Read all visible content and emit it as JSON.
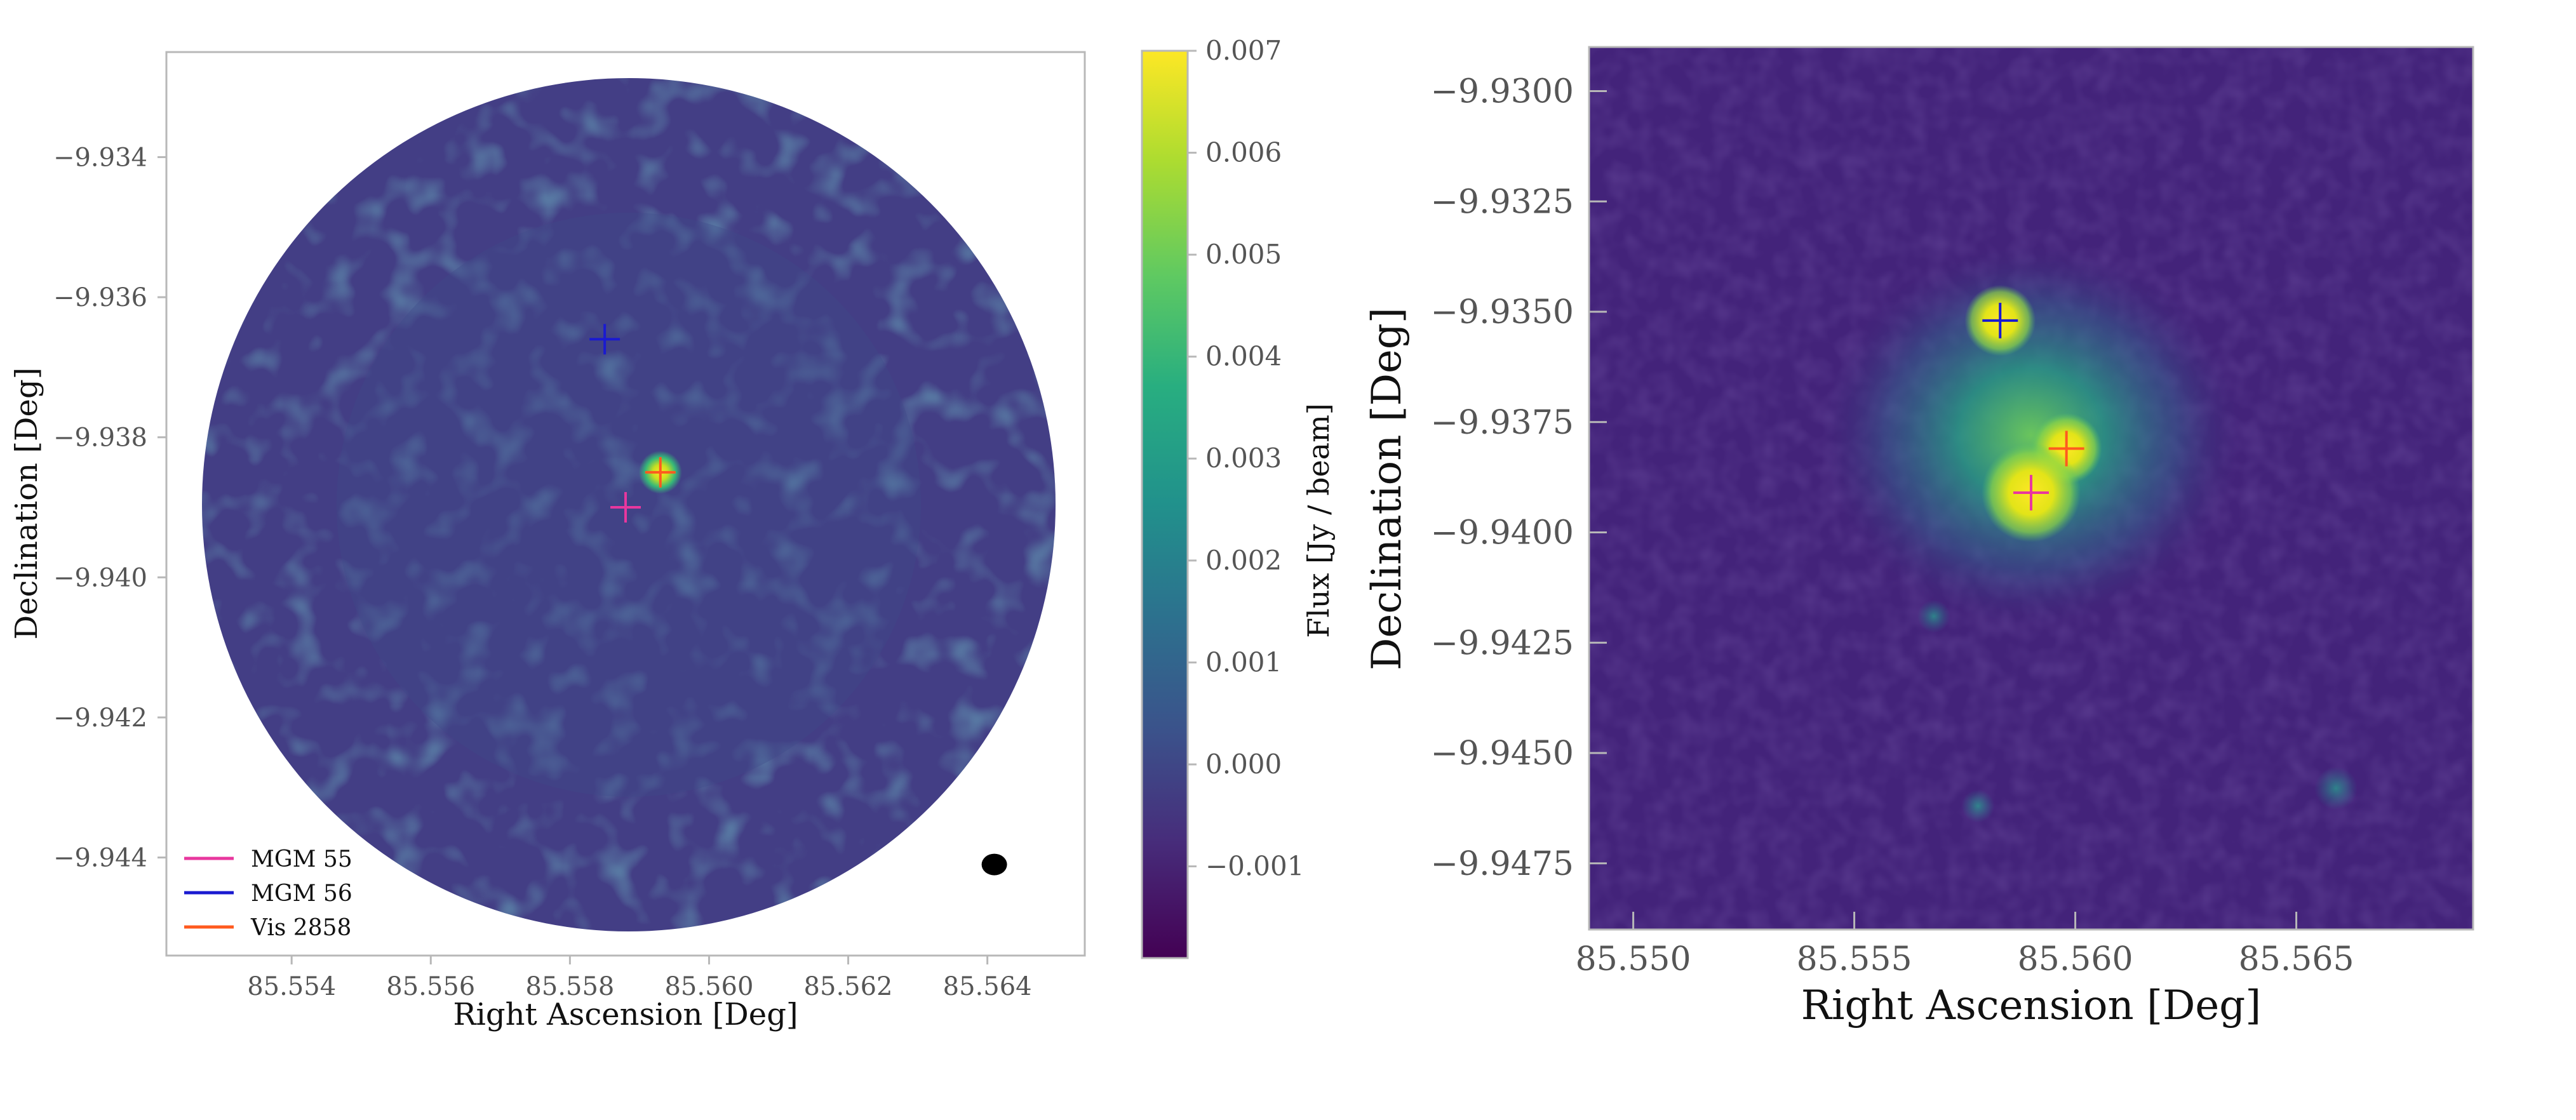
{
  "chart_data": [
    {
      "type": "heatmap",
      "name": "interferometric-map",
      "xlabel": "Right Ascension [Deg]",
      "ylabel": "Declination [Deg]",
      "xlim": [
        85.5522,
        85.5654
      ],
      "ylim": [
        -9.9454,
        -9.9325
      ],
      "xticks": [
        "85.554",
        "85.556",
        "85.558",
        "85.560",
        "85.562",
        "85.564"
      ],
      "xtick_values": [
        85.554,
        85.556,
        85.558,
        85.56,
        85.562,
        85.564
      ],
      "yticks": [
        "−9.934",
        "−9.936",
        "−9.938",
        "−9.940",
        "−9.942",
        "−9.944"
      ],
      "ytick_values": [
        -9.934,
        -9.936,
        -9.938,
        -9.94,
        -9.942,
        -9.944
      ],
      "field_of_view": "circular",
      "markers": [
        {
          "name": "MGM 56",
          "ra": 85.5585,
          "dec": -9.9366,
          "color": "#1a1ad0"
        },
        {
          "name": "Vis 2858",
          "ra": 85.5593,
          "dec": -9.9385,
          "color": "#ff5a1f"
        },
        {
          "name": "MGM 55",
          "ra": 85.5588,
          "dec": -9.939,
          "color": "#e8379e"
        }
      ],
      "source_peak": {
        "ra": 85.5593,
        "dec": -9.9385
      },
      "beam": {
        "ra": 85.5641,
        "dec": -9.9441
      },
      "legend": {
        "placement": "lower-left",
        "entries": [
          {
            "label": "MGM 55",
            "color": "#e8379e"
          },
          {
            "label": "MGM 56",
            "color": "#1a1ad0"
          },
          {
            "label": "Vis 2858",
            "color": "#ff5a1f"
          }
        ]
      },
      "colorbar": {
        "label": "Flux [Jy / beam]",
        "range": [
          -0.0019,
          0.007
        ],
        "colormap": "viridis",
        "ticks": [
          "−0.001",
          "0.000",
          "0.001",
          "0.002",
          "0.003",
          "0.004",
          "0.005",
          "0.006",
          "0.007"
        ],
        "tick_values": [
          -0.001,
          0.0,
          0.001,
          0.002,
          0.003,
          0.004,
          0.005,
          0.006,
          0.007
        ]
      }
    },
    {
      "type": "heatmap",
      "name": "infrared-image",
      "xlabel": "Right Ascension [Deg]",
      "ylabel": "Declination [Deg]",
      "xlim": [
        85.549,
        85.569
      ],
      "ylim": [
        -9.949,
        -9.929
      ],
      "xticks": [
        "85.550",
        "85.555",
        "85.560",
        "85.565"
      ],
      "xtick_values": [
        85.55,
        85.555,
        85.56,
        85.565
      ],
      "yticks": [
        "−9.9300",
        "−9.9325",
        "−9.9350",
        "−9.9375",
        "−9.9400",
        "−9.9425",
        "−9.9450",
        "−9.9475"
      ],
      "ytick_values": [
        -9.93,
        -9.9325,
        -9.935,
        -9.9375,
        -9.94,
        -9.9425,
        -9.945,
        -9.9475
      ],
      "colormap": "viridis",
      "markers": [
        {
          "name": "MGM 56",
          "ra": 85.5583,
          "dec": -9.9352,
          "color": "#1a1ad0"
        },
        {
          "name": "Vis 2858",
          "ra": 85.5598,
          "dec": -9.9381,
          "color": "#ff5a1f"
        },
        {
          "name": "MGM 55",
          "ra": 85.559,
          "dec": -9.9391,
          "color": "#e8379e"
        }
      ],
      "bright_sources": [
        {
          "ra": 85.5583,
          "dec": -9.9352
        },
        {
          "ra": 85.5598,
          "dec": -9.9381
        },
        {
          "ra": 85.559,
          "dec": -9.9391
        },
        {
          "ra": 85.5568,
          "dec": -9.9419
        },
        {
          "ra": 85.5578,
          "dec": -9.9462
        },
        {
          "ra": 85.5659,
          "dec": -9.9458
        }
      ]
    }
  ]
}
